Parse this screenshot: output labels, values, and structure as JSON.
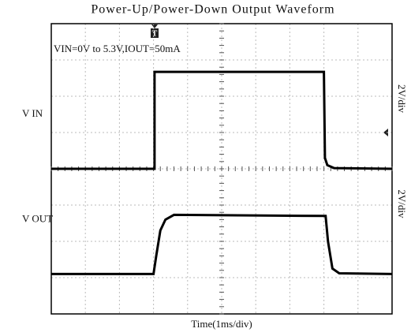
{
  "chart_data": {
    "type": "line",
    "title": "Power-Up/Power-Down Output Waveform",
    "annotation": "VIN=0V to 5.3V,IOUT=50mA",
    "x_label": "Time(1ms/div)",
    "xlim": [
      0,
      10
    ],
    "ylim": [
      0,
      8
    ],
    "xticks": [
      0,
      1,
      2,
      3,
      4,
      5,
      6,
      7,
      8,
      9,
      10
    ],
    "yticks": [
      0,
      1,
      2,
      3,
      4,
      5,
      6,
      7,
      8
    ],
    "grid": true,
    "series": [
      {
        "name": "V IN",
        "scale": "2V/div",
        "color": "#000000",
        "x": [
          0,
          3.03,
          3.03,
          8.0,
          8.03,
          8.1,
          8.3,
          10
        ],
        "values": [
          4.0,
          4.0,
          6.67,
          6.67,
          4.3,
          4.1,
          4.02,
          4.0
        ]
      },
      {
        "name": "V OUT",
        "scale": "2V/div",
        "color": "#000000",
        "x": [
          0,
          3.0,
          3.08,
          3.2,
          3.35,
          3.6,
          8.05,
          8.12,
          8.25,
          8.45,
          10
        ],
        "values": [
          1.1,
          1.1,
          1.6,
          2.3,
          2.6,
          2.73,
          2.7,
          2.0,
          1.25,
          1.12,
          1.1
        ]
      }
    ]
  }
}
